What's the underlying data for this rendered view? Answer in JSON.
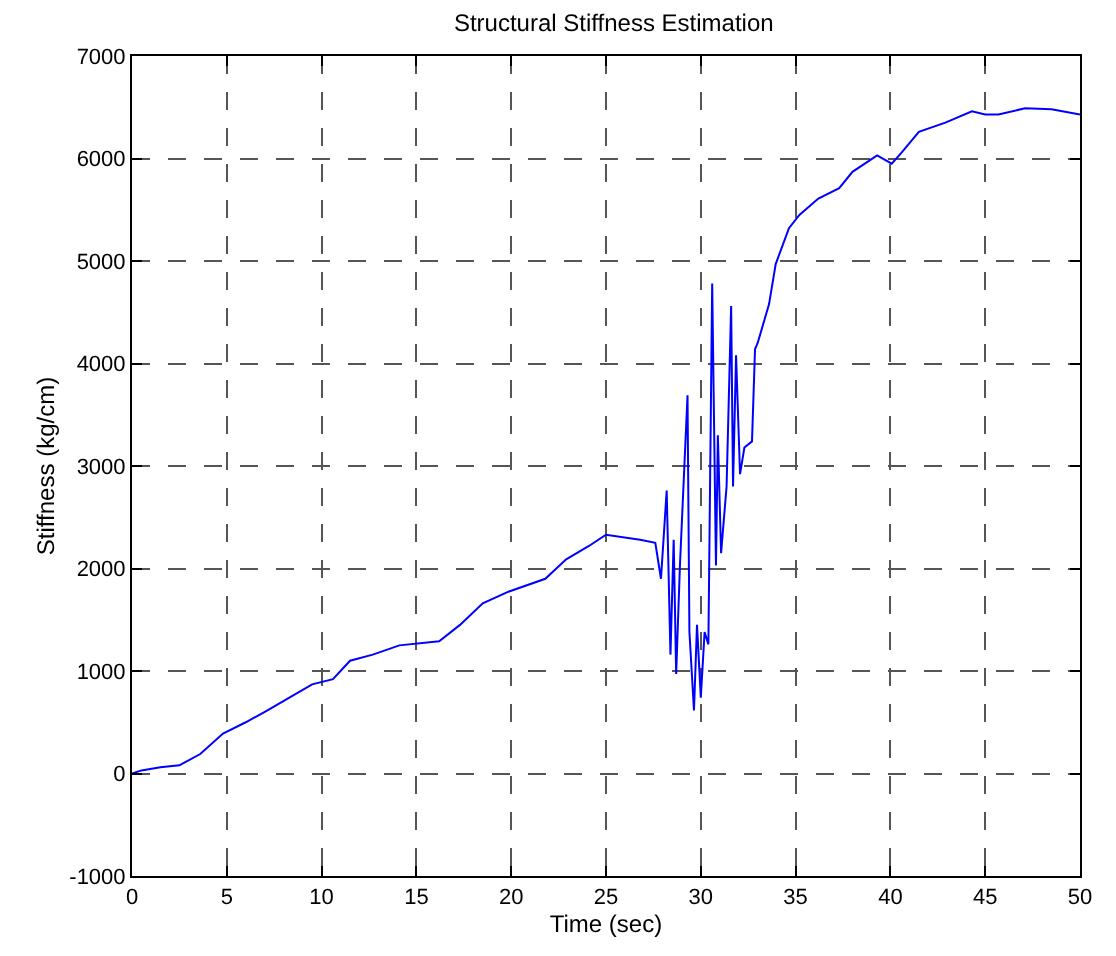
{
  "chart_data": {
    "type": "line",
    "title": "Structural Stiffness Estimation",
    "xlabel": "Time (sec)",
    "ylabel": "Stiffness (kg/cm)",
    "series": [
      {
        "color": "#0000ff",
        "x": [
          0,
          0.5,
          1.5,
          2.5,
          3.6,
          4.8,
          6,
          7.1,
          8.3,
          9.5,
          10.6,
          11.5,
          12.7,
          14.1,
          16.2,
          17.3,
          18.5,
          19.8,
          21.8,
          22.9,
          24.1,
          25,
          26.8,
          27.6,
          27.9,
          28.2,
          28.4,
          28.57,
          28.7,
          28.9,
          29.3,
          29.4,
          29.64,
          29.8,
          30,
          30.2,
          30.4,
          30.6,
          30.8,
          30.9,
          31.07,
          31.36,
          31.6,
          31.7,
          31.86,
          32.07,
          32.3,
          32.7,
          32.86,
          33,
          33.6,
          33.95,
          34.65,
          35.2,
          36.2,
          37.3,
          38,
          39.3,
          40.07,
          40.6,
          41.5,
          42.9,
          44.3,
          45,
          45.7,
          47.1,
          48.5,
          50
        ],
        "values": [
          0,
          30,
          60,
          80,
          190,
          390,
          500,
          610,
          740,
          870,
          920,
          1100,
          1160,
          1250,
          1290,
          1450,
          1660,
          1770,
          1900,
          2090,
          2220,
          2330,
          2280,
          2250,
          1900,
          2760,
          1160,
          2280,
          970,
          2030,
          3690,
          1380,
          615,
          1450,
          740,
          1380,
          1260,
          4780,
          2030,
          3300,
          2150,
          2800,
          4560,
          2800,
          4080,
          2920,
          3180,
          3240,
          4140,
          4200,
          4580,
          4970,
          5320,
          5450,
          5610,
          5710,
          5870,
          6030,
          5950,
          6060,
          6260,
          6350,
          6460,
          6430,
          6430,
          6490,
          6480,
          6430
        ]
      }
    ],
    "xlim": [
      0,
      50
    ],
    "xticks": [
      0,
      5,
      10,
      15,
      20,
      25,
      30,
      35,
      40,
      45,
      50
    ],
    "ylim": [
      -1000,
      7000
    ],
    "yticks": [
      -1000,
      0,
      1000,
      2000,
      3000,
      4000,
      5000,
      6000,
      7000
    ],
    "grid": true,
    "legend": false,
    "marker": "none",
    "line_style": "solid"
  }
}
